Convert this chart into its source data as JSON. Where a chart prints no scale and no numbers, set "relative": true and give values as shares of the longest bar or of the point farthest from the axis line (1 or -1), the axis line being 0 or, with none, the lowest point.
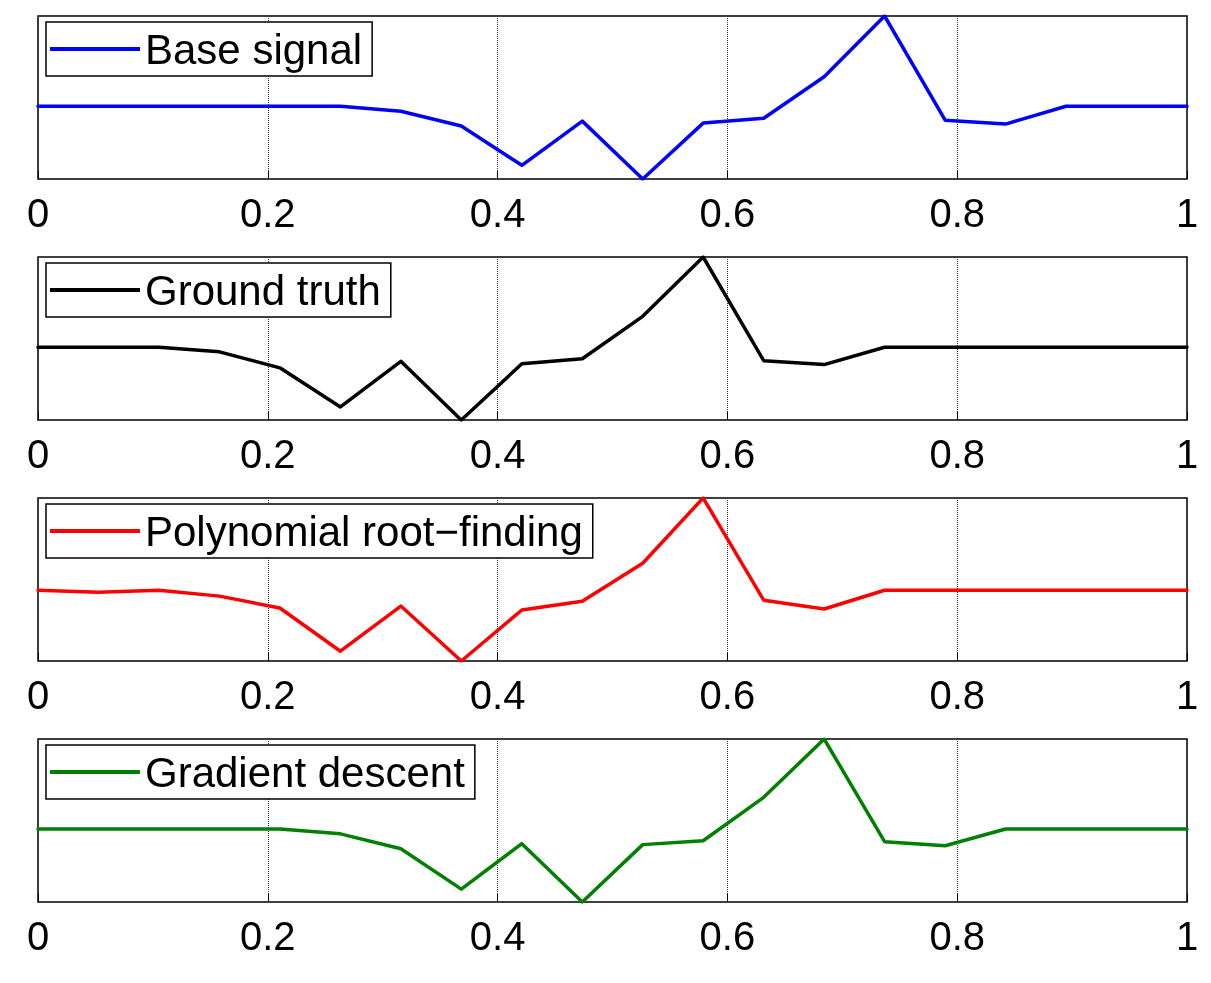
{
  "chart_data": [
    {
      "type": "line",
      "relative": true,
      "x": [
        0,
        0.0526,
        0.1053,
        0.1579,
        0.2105,
        0.2632,
        0.3158,
        0.3684,
        0.4211,
        0.4737,
        0.5263,
        0.5789,
        0.6316,
        0.6842,
        0.7368,
        0.7895,
        0.8421,
        0.8947,
        0.9474,
        1
      ],
      "xlim": [
        0,
        1
      ],
      "xticks": [
        0,
        0.2,
        0.4,
        0.6,
        0.8,
        1
      ],
      "grid": "x",
      "legend": "top left",
      "tick_labels": "x",
      "marker": "none",
      "line_style": "solid",
      "series": [
        {
          "name": "Base signal",
          "color": "#0000ff",
          "values": [
            0.446,
            0.446,
            0.446,
            0.446,
            0.446,
            0.446,
            0.416,
            0.325,
            0.084,
            0.355,
            0,
            0.343,
            0.373,
            0.627,
            1,
            0.361,
            0.337,
            0.446,
            0.446,
            0.446
          ]
        }
      ]
    },
    {
      "type": "line",
      "relative": true,
      "x": [
        0,
        0.0526,
        0.1053,
        0.1579,
        0.2105,
        0.2632,
        0.3158,
        0.3684,
        0.4211,
        0.4737,
        0.5263,
        0.5789,
        0.6316,
        0.6842,
        0.7368,
        0.7895,
        0.8421,
        0.8947,
        0.9474,
        1
      ],
      "xlim": [
        0,
        1
      ],
      "xticks": [
        0,
        0.2,
        0.4,
        0.6,
        0.8,
        1
      ],
      "grid": "x",
      "legend": "top left",
      "tick_labels": "x",
      "marker": "none",
      "line_style": "solid",
      "series": [
        {
          "name": "Ground truth",
          "color": "#000000",
          "values": [
            0.446,
            0.446,
            0.446,
            0.418,
            0.32,
            0.08,
            0.36,
            0,
            0.345,
            0.376,
            0.636,
            1,
            0.364,
            0.34,
            0.446,
            0.446,
            0.446,
            0.446,
            0.446,
            0.446
          ]
        }
      ]
    },
    {
      "type": "line",
      "relative": true,
      "x": [
        0,
        0.0526,
        0.1053,
        0.1579,
        0.2105,
        0.2632,
        0.3158,
        0.3684,
        0.4211,
        0.4737,
        0.5263,
        0.5789,
        0.6316,
        0.6842,
        0.7368,
        0.7895,
        0.8421,
        0.8947,
        0.9474,
        1
      ],
      "xlim": [
        0,
        1
      ],
      "xticks": [
        0,
        0.2,
        0.4,
        0.6,
        0.8,
        1
      ],
      "grid": "x",
      "legend": "top left",
      "tick_labels": "x",
      "marker": "none",
      "line_style": "solid",
      "series": [
        {
          "name": "Polynomial root−finding",
          "color": "#ff0000",
          "values": [
            0.434,
            0.422,
            0.434,
            0.398,
            0.325,
            0.06,
            0.337,
            0,
            0.313,
            0.367,
            0.6,
            1,
            0.373,
            0.319,
            0.434,
            0.434,
            0.434,
            0.434,
            0.434,
            0.434
          ]
        }
      ]
    },
    {
      "type": "line",
      "relative": true,
      "x": [
        0,
        0.0526,
        0.1053,
        0.1579,
        0.2105,
        0.2632,
        0.3158,
        0.3684,
        0.4211,
        0.4737,
        0.5263,
        0.5789,
        0.6316,
        0.6842,
        0.7368,
        0.7895,
        0.8421,
        0.8947,
        0.9474,
        1
      ],
      "xlim": [
        0,
        1
      ],
      "xticks": [
        0,
        0.2,
        0.4,
        0.6,
        0.8,
        1
      ],
      "grid": "x",
      "legend": "top left",
      "tick_labels": "x",
      "marker": "none",
      "line_style": "solid",
      "series": [
        {
          "name": "Gradient descent",
          "color": "#008000",
          "values": [
            0.448,
            0.448,
            0.448,
            0.448,
            0.448,
            0.418,
            0.327,
            0.079,
            0.358,
            0,
            0.352,
            0.376,
            0.642,
            1,
            0.37,
            0.345,
            0.448,
            0.448,
            0.448,
            0.448
          ]
        }
      ]
    }
  ]
}
